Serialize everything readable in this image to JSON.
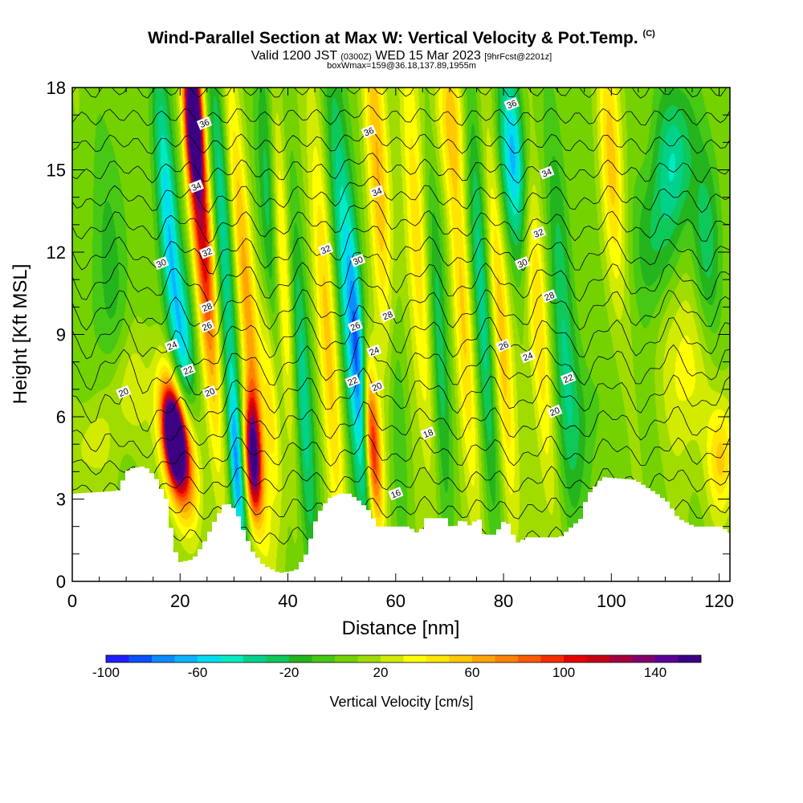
{
  "header": {
    "title": "Wind-Parallel Section at Max W: Vertical Velocity & Pot.Temp.",
    "title_tag": "(C)",
    "valid_prefix": "Valid 1200 JST",
    "valid_utc": "(0300Z)",
    "valid_date": "WED 15 Mar 2023",
    "forecast": "[9hrFcst@2201z]",
    "subtitle2": "boxWmax=159@36.18,137.89,1955m"
  },
  "chart_data": {
    "type": "heatmap",
    "xlabel": "Distance [nm]",
    "ylabel": "Height [Kft MSL]",
    "xlim": [
      0,
      122
    ],
    "ylim": [
      0,
      18
    ],
    "xticks": [
      0,
      20,
      40,
      60,
      80,
      100,
      120
    ],
    "yticks": [
      0,
      3,
      6,
      9,
      12,
      15,
      18
    ],
    "xminor_step": 5,
    "yminor_step": 1,
    "colorbar": {
      "label": "Vertical Velocity [cm/s]",
      "min": -100,
      "step": 10,
      "ticks": [
        -100,
        -60,
        -20,
        20,
        60,
        100,
        140
      ],
      "colors": [
        "#1e1eff",
        "#0a50ff",
        "#0a8cff",
        "#0ab4ff",
        "#00dcf0",
        "#00ebc3",
        "#00d28c",
        "#0fc85a",
        "#23b41e",
        "#46c814",
        "#73d200",
        "#a0dc00",
        "#d2eb00",
        "#ffff00",
        "#ffe600",
        "#ffc800",
        "#ffa500",
        "#ff8200",
        "#ff5a00",
        "#f52d00",
        "#e60000",
        "#c80014",
        "#a50041",
        "#82006e",
        "#5a0096",
        "#3c0082"
      ]
    },
    "terrain_kft": [
      [
        0,
        3.2
      ],
      [
        8,
        3.3
      ],
      [
        10,
        4.1
      ],
      [
        13,
        4.2
      ],
      [
        15,
        3.8
      ],
      [
        17,
        3.0
      ],
      [
        18.5,
        1.2
      ],
      [
        19.5,
        0.7
      ],
      [
        22,
        0.8
      ],
      [
        24,
        1.4
      ],
      [
        26,
        2.2
      ],
      [
        28,
        2.9
      ],
      [
        30,
        2.6
      ],
      [
        31,
        2.0
      ],
      [
        33,
        1.1
      ],
      [
        35,
        0.6
      ],
      [
        37,
        0.4
      ],
      [
        38,
        0.3
      ],
      [
        41,
        0.4
      ],
      [
        43,
        1.0
      ],
      [
        45,
        2.4
      ],
      [
        47,
        3.0
      ],
      [
        49,
        3.2
      ],
      [
        51,
        3.2
      ],
      [
        53,
        2.9
      ],
      [
        55,
        2.5
      ],
      [
        56,
        2.0
      ],
      [
        58,
        2.0
      ],
      [
        62,
        2.0
      ],
      [
        64,
        1.7
      ],
      [
        65,
        2.3
      ],
      [
        69,
        2.3
      ],
      [
        70,
        1.9
      ],
      [
        72,
        2.3
      ],
      [
        73,
        2.0
      ],
      [
        75,
        2.3
      ],
      [
        76,
        1.7
      ],
      [
        78,
        1.7
      ],
      [
        80,
        2.3
      ],
      [
        82,
        1.4
      ],
      [
        84,
        1.6
      ],
      [
        90,
        1.6
      ],
      [
        94,
        2.3
      ],
      [
        95,
        3.1
      ],
      [
        98,
        3.8
      ],
      [
        104,
        3.7
      ],
      [
        108,
        3.2
      ],
      [
        110,
        2.9
      ],
      [
        112,
        2.3
      ],
      [
        115,
        2.0
      ],
      [
        120,
        2.0
      ],
      [
        122,
        1.7
      ]
    ],
    "velocity_cells": [
      {
        "x": 19.5,
        "y": 5.0,
        "w": -0.6,
        "sx": 2.0,
        "sy": 1.8,
        "v": 140
      },
      {
        "x": 19.0,
        "y": 5.2,
        "w": -0.5,
        "sx": 1.1,
        "sy": 0.9,
        "v": 165
      },
      {
        "x": 22.5,
        "y": 17.0,
        "w": -0.2,
        "sx": 1.0,
        "sy": 1.6,
        "v": 140
      },
      {
        "x": 23.0,
        "y": 15.0,
        "w": -0.35,
        "sx": 1.3,
        "sy": 3.8,
        "v": 75
      },
      {
        "x": 18.0,
        "y": 12.5,
        "w": -0.35,
        "sx": 1.3,
        "sy": 4.5,
        "v": -70
      },
      {
        "x": 21.0,
        "y": 8.5,
        "w": -0.2,
        "sx": 1.2,
        "sy": 2.0,
        "v": -40
      },
      {
        "x": 25.0,
        "y": 11.0,
        "w": -0.3,
        "sx": 1.2,
        "sy": 5.0,
        "v": 50
      },
      {
        "x": 33.5,
        "y": 4.5,
        "w": -0.2,
        "sx": 1.0,
        "sy": 1.5,
        "v": 140
      },
      {
        "x": 32.5,
        "y": 10.0,
        "w": -0.4,
        "sx": 1.3,
        "sy": 6.0,
        "v": 55
      },
      {
        "x": 30.5,
        "y": 4.0,
        "w": -0.3,
        "sx": 0.9,
        "sy": 2.5,
        "v": -70
      },
      {
        "x": 28.0,
        "y": 13.0,
        "w": -0.3,
        "sx": 1.2,
        "sy": 5.0,
        "v": -45
      },
      {
        "x": 36.5,
        "y": 14.5,
        "w": -0.2,
        "sx": 1.3,
        "sy": 4.5,
        "v": -45
      },
      {
        "x": 39.0,
        "y": 12.0,
        "w": -0.3,
        "sx": 1.3,
        "sy": 5.0,
        "v": 50
      },
      {
        "x": 42.5,
        "y": 7.0,
        "w": -0.3,
        "sx": 1.3,
        "sy": 5.0,
        "v": -50
      },
      {
        "x": 37.0,
        "y": 6.5,
        "w": -0.3,
        "sx": 1.0,
        "sy": 3.0,
        "v": 40
      },
      {
        "x": 55.5,
        "y": 5.0,
        "w": -0.3,
        "sx": 1.2,
        "sy": 2.2,
        "v": 110
      },
      {
        "x": 53.5,
        "y": 7.0,
        "w": -0.3,
        "sx": 1.0,
        "sy": 3.5,
        "v": -70
      },
      {
        "x": 51.0,
        "y": 11.0,
        "w": -0.35,
        "sx": 1.6,
        "sy": 6.0,
        "v": -55
      },
      {
        "x": 57.0,
        "y": 14.0,
        "w": -0.3,
        "sx": 1.5,
        "sy": 6.0,
        "v": 55
      },
      {
        "x": 47.5,
        "y": 9.0,
        "w": -0.3,
        "sx": 1.4,
        "sy": 6.0,
        "v": 45
      },
      {
        "x": 60.0,
        "y": 7.0,
        "w": -0.25,
        "sx": 1.3,
        "sy": 4.0,
        "v": -35
      },
      {
        "x": 64.0,
        "y": 12.0,
        "w": -0.3,
        "sx": 1.5,
        "sy": 6.0,
        "v": 40
      },
      {
        "x": 68.0,
        "y": 8.5,
        "w": -0.25,
        "sx": 1.2,
        "sy": 5.0,
        "v": -40
      },
      {
        "x": 72.5,
        "y": 9.5,
        "w": -0.3,
        "sx": 1.3,
        "sy": 5.5,
        "v": 45
      },
      {
        "x": 76.0,
        "y": 10.0,
        "w": -0.3,
        "sx": 1.3,
        "sy": 6.0,
        "v": -45
      },
      {
        "x": 82.0,
        "y": 15.5,
        "w": -0.25,
        "sx": 2.0,
        "sy": 2.5,
        "v": -75
      },
      {
        "x": 79.5,
        "y": 9.0,
        "w": -0.3,
        "sx": 1.3,
        "sy": 5.0,
        "v": 50
      },
      {
        "x": 86.0,
        "y": 10.5,
        "w": -0.35,
        "sx": 1.4,
        "sy": 5.5,
        "v": 45
      },
      {
        "x": 91.0,
        "y": 9.0,
        "w": -0.25,
        "sx": 1.6,
        "sy": 5.0,
        "v": -35
      },
      {
        "x": 100.0,
        "y": 15.5,
        "w": -0.2,
        "sx": 1.5,
        "sy": 3.5,
        "v": 45
      },
      {
        "x": 112.0,
        "y": 15.5,
        "w": 0.0,
        "sx": 2.5,
        "sy": 2.0,
        "v": -45
      },
      {
        "x": 108.0,
        "y": 12.5,
        "w": 0.0,
        "sx": 2.5,
        "sy": 2.0,
        "v": -30
      },
      {
        "x": 117.5,
        "y": 12.0,
        "w": 0.0,
        "sx": 2.0,
        "sy": 2.5,
        "v": -35
      },
      {
        "x": 120.5,
        "y": 4.5,
        "w": 0.0,
        "sx": 1.8,
        "sy": 1.5,
        "v": 45
      },
      {
        "x": 114.0,
        "y": 8.0,
        "w": 0.0,
        "sx": 3.0,
        "sy": 2.5,
        "v": 30
      },
      {
        "x": 7.0,
        "y": 11.0,
        "w": 0.0,
        "sx": 3.0,
        "sy": 4.0,
        "v": -20
      },
      {
        "x": 10.0,
        "y": 7.0,
        "w": 0.0,
        "sx": 2.5,
        "sy": 1.5,
        "v": 25
      },
      {
        "x": 4.0,
        "y": 5.0,
        "w": 0.0,
        "sx": 2.5,
        "sy": 1.2,
        "v": 22
      },
      {
        "x": 70.0,
        "y": 17.0,
        "w": -0.2,
        "sx": 2.5,
        "sy": 2.0,
        "v": 30
      },
      {
        "x": 95.0,
        "y": 6.0,
        "w": 0.0,
        "sx": 3.0,
        "sy": 2.0,
        "v": -15
      }
    ],
    "theta_levels": [
      15,
      16,
      17,
      18,
      19,
      20,
      21,
      22,
      23,
      24,
      25,
      26,
      27,
      28,
      29,
      30,
      31,
      32,
      33,
      34,
      35,
      36,
      37
    ],
    "theta_labels": [
      {
        "text": "36",
        "x": 24.5,
        "y": 16.7,
        "level": 36
      },
      {
        "text": "36",
        "x": 55.0,
        "y": 16.4,
        "level": 36
      },
      {
        "text": "36",
        "x": 81.5,
        "y": 17.4,
        "level": 36
      },
      {
        "text": "34",
        "x": 23.0,
        "y": 14.4,
        "level": 34
      },
      {
        "text": "34",
        "x": 56.5,
        "y": 14.2,
        "level": 34
      },
      {
        "text": "34",
        "x": 88.0,
        "y": 14.9,
        "level": 34
      },
      {
        "text": "32",
        "x": 25.0,
        "y": 12.0,
        "level": 32
      },
      {
        "text": "32",
        "x": 47.0,
        "y": 12.1,
        "level": 32
      },
      {
        "text": "32",
        "x": 86.5,
        "y": 12.7,
        "level": 32
      },
      {
        "text": "30",
        "x": 16.5,
        "y": 11.6,
        "level": 30
      },
      {
        "text": "30",
        "x": 53.0,
        "y": 11.7,
        "level": 30
      },
      {
        "text": "30",
        "x": 83.5,
        "y": 11.6,
        "level": 30
      },
      {
        "text": "28",
        "x": 25.0,
        "y": 10.0,
        "level": 28
      },
      {
        "text": "28",
        "x": 58.5,
        "y": 9.7,
        "level": 28
      },
      {
        "text": "28",
        "x": 88.5,
        "y": 10.4,
        "level": 28
      },
      {
        "text": "26",
        "x": 25.0,
        "y": 9.3,
        "level": 26
      },
      {
        "text": "26",
        "x": 52.5,
        "y": 9.3,
        "level": 26
      },
      {
        "text": "26",
        "x": 80.0,
        "y": 8.6,
        "level": 26
      },
      {
        "text": "24",
        "x": 18.5,
        "y": 8.6,
        "level": 24
      },
      {
        "text": "24",
        "x": 56.0,
        "y": 8.4,
        "level": 24
      },
      {
        "text": "24",
        "x": 84.5,
        "y": 8.2,
        "level": 24
      },
      {
        "text": "22",
        "x": 21.5,
        "y": 7.7,
        "level": 22
      },
      {
        "text": "22",
        "x": 52.0,
        "y": 7.3,
        "level": 22
      },
      {
        "text": "22",
        "x": 92.0,
        "y": 7.4,
        "level": 22
      },
      {
        "text": "20",
        "x": 9.5,
        "y": 6.9,
        "level": 20
      },
      {
        "text": "20",
        "x": 25.5,
        "y": 6.9,
        "level": 20
      },
      {
        "text": "20",
        "x": 56.5,
        "y": 7.1,
        "level": 20
      },
      {
        "text": "20",
        "x": 89.5,
        "y": 6.2,
        "level": 20
      },
      {
        "text": "18",
        "x": 66.0,
        "y": 5.4,
        "level": 18
      },
      {
        "text": "16",
        "x": 60.0,
        "y": 3.2,
        "level": 16
      }
    ]
  }
}
